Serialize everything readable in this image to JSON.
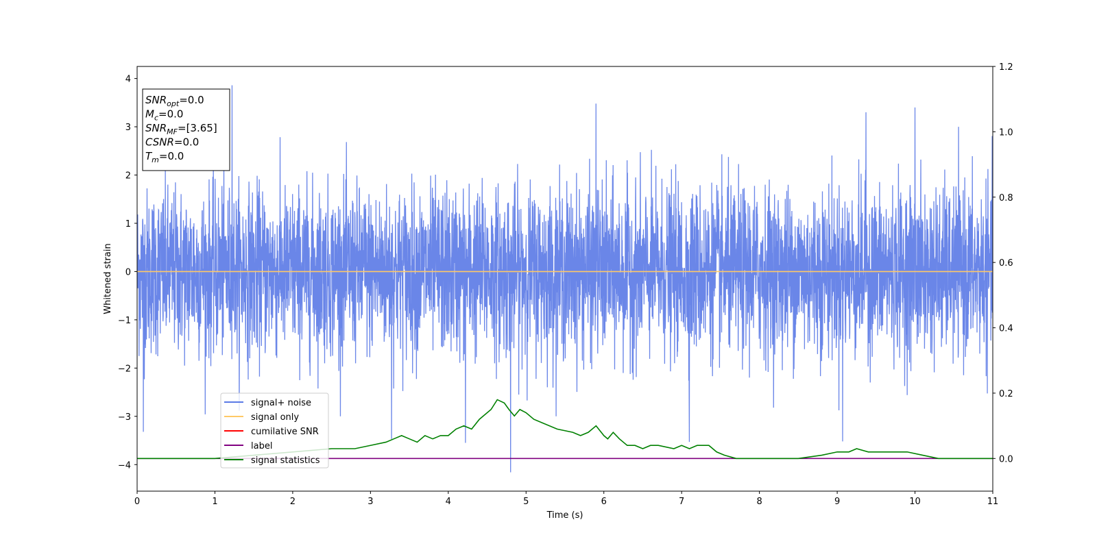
{
  "chart_data": {
    "type": "line",
    "xlabel": "Time (s)",
    "ylabel": "Whitened strain",
    "xlim": [
      0,
      11
    ],
    "ylim": [
      -4.55,
      4.25
    ],
    "y2lim": [
      -0.1,
      1.2
    ],
    "x_ticks": [
      "0",
      "1",
      "2",
      "3",
      "4",
      "5",
      "6",
      "7",
      "8",
      "9",
      "10",
      "11"
    ],
    "y_ticks": [
      "4",
      "3",
      "2",
      "1",
      "0",
      "−1",
      "−2",
      "−3",
      "−4"
    ],
    "y2_ticks": [
      "1.2",
      "1.0",
      "0.8",
      "0.6",
      "0.4",
      "0.2",
      "0.0"
    ],
    "grid": false,
    "legend_position": "lower-left",
    "annotation": {
      "lines": [
        {
          "main": "SNR",
          "sub": "opt",
          "value": "=0.0"
        },
        {
          "main": "M",
          "sub": "c",
          "value": "=0.0"
        },
        {
          "main": "SNR",
          "sub": "MF",
          "value": "=[3.65]"
        },
        {
          "main": "CSNR",
          "sub": "",
          "value": "=0.0"
        },
        {
          "main": "T",
          "sub": "m",
          "value": "=0.0"
        }
      ]
    },
    "series": [
      {
        "name": "signal+ noise",
        "axis": "left",
        "color": "#5a79e6",
        "kind": "noise",
        "mean": 0.0,
        "std": 0.85,
        "max_peak": 3.86,
        "min_peak": -4.16,
        "peaks": [
          [
            1.22,
            3.86
          ],
          [
            5.9,
            3.48
          ],
          [
            10.0,
            3.4
          ],
          [
            9.37,
            3.3
          ],
          [
            4.8,
            -4.16
          ],
          [
            4.22,
            -3.55
          ],
          [
            9.07,
            -3.52
          ],
          [
            3.27,
            -3.47
          ],
          [
            7.1,
            -3.53
          ],
          [
            0.08,
            -3.32
          ]
        ]
      },
      {
        "name": "signal only",
        "axis": "left",
        "color": "#ffc966",
        "x": [
          0,
          11
        ],
        "y": [
          0,
          0
        ]
      },
      {
        "name": "cumilative SNR",
        "axis": "right",
        "color": "#ff0000",
        "x": [],
        "y": []
      },
      {
        "name": "label",
        "axis": "right",
        "color": "#800080",
        "x": [
          0,
          11
        ],
        "y": [
          0,
          0
        ]
      },
      {
        "name": "signal statistics",
        "axis": "right",
        "color": "#008000",
        "x": [
          0,
          1,
          2,
          2.5,
          2.8,
          3.0,
          3.2,
          3.3,
          3.4,
          3.5,
          3.6,
          3.7,
          3.8,
          3.9,
          4.0,
          4.1,
          4.2,
          4.3,
          4.4,
          4.55,
          4.63,
          4.72,
          4.78,
          4.85,
          4.92,
          5.0,
          5.1,
          5.2,
          5.4,
          5.6,
          5.7,
          5.8,
          5.9,
          6.0,
          6.05,
          6.12,
          6.2,
          6.3,
          6.4,
          6.5,
          6.6,
          6.7,
          6.9,
          7.0,
          7.1,
          7.2,
          7.27,
          7.35,
          7.45,
          7.55,
          7.7,
          8.0,
          8.5,
          8.8,
          9.0,
          9.15,
          9.25,
          9.4,
          9.55,
          9.7,
          9.9,
          10.1,
          10.3,
          11
        ],
        "y": [
          0.0,
          0.0,
          0.02,
          0.03,
          0.03,
          0.04,
          0.05,
          0.06,
          0.07,
          0.06,
          0.05,
          0.07,
          0.06,
          0.07,
          0.07,
          0.09,
          0.1,
          0.09,
          0.12,
          0.15,
          0.18,
          0.17,
          0.15,
          0.13,
          0.15,
          0.14,
          0.12,
          0.11,
          0.09,
          0.08,
          0.07,
          0.08,
          0.1,
          0.07,
          0.06,
          0.08,
          0.06,
          0.04,
          0.04,
          0.03,
          0.04,
          0.04,
          0.03,
          0.04,
          0.03,
          0.04,
          0.04,
          0.04,
          0.02,
          0.01,
          0.0,
          0.0,
          0.0,
          0.01,
          0.02,
          0.02,
          0.03,
          0.02,
          0.02,
          0.02,
          0.02,
          0.01,
          0.0,
          0.0
        ]
      }
    ]
  }
}
